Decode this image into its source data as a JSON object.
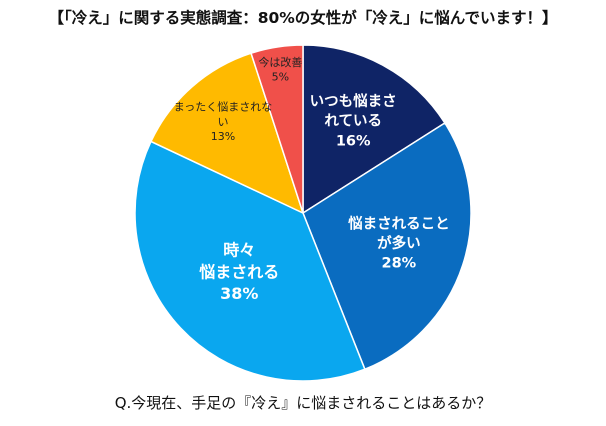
{
  "title": "【「冷え」に関する実態調査：80%の女性が「冷え」に悩んでいます！】",
  "question": "Q.今現在、手足の『冷え』に悩まされることはあるか？",
  "chart_data": {
    "type": "pie",
    "title": "【「冷え」に関する実態調査：80%の女性が「冷え」に悩んでいます！】",
    "slices": [
      {
        "name_lines": [
          "いつも悩まさ",
          "れている"
        ],
        "value": 16,
        "value_label": "16%",
        "color": "#0f2466",
        "label_color": "#ffffff"
      },
      {
        "name_lines": [
          "悩まされること",
          "が多い"
        ],
        "value": 28,
        "value_label": "28%",
        "color": "#0a6cc0",
        "label_color": "#ffffff"
      },
      {
        "name_lines": [
          "時々",
          "悩まされる"
        ],
        "value": 38,
        "value_label": "38%",
        "color": "#0aa7ef",
        "label_color": "#ffffff"
      },
      {
        "name_lines": [
          "まったく悩まされな",
          "い"
        ],
        "value": 13,
        "value_label": "13%",
        "color": "#ffba00",
        "label_color": "#222222"
      },
      {
        "name_lines": [
          "今は改善"
        ],
        "value": 5,
        "value_label": "5%",
        "color": "#f0504a",
        "label_color": "#222222"
      }
    ]
  }
}
